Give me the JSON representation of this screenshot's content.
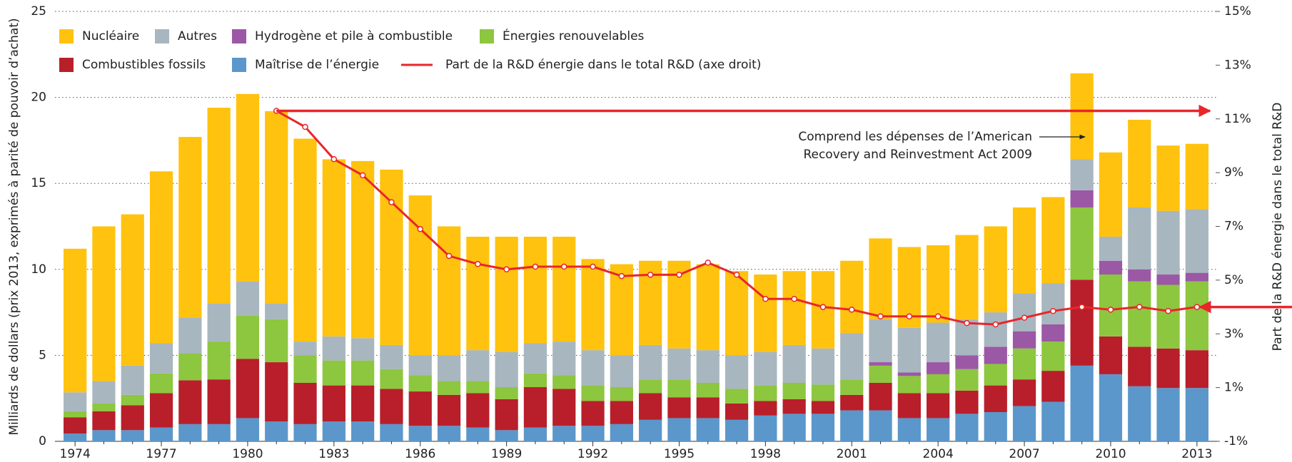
{
  "chart_data": {
    "type": "bar",
    "categories": [
      "1974",
      null,
      null,
      "1977",
      null,
      null,
      "1980",
      null,
      null,
      "1983",
      null,
      null,
      "1986",
      null,
      null,
      "1989",
      null,
      null,
      "1992",
      null,
      null,
      "1995",
      null,
      null,
      "1998",
      null,
      null,
      "2001",
      null,
      null,
      "2004",
      null,
      null,
      "2007",
      null,
      null,
      "2010",
      null,
      null,
      "2013"
    ],
    "y_label": "Milliards de dollars (prix 2013, exprimés à parité de pouvoir d’achat)",
    "y2_label": "Part de la R&D énergie dans le total R&D",
    "annotation": [
      "Comprend les dépenses de l’American",
      "Recovery and Reinvestment Act 2009"
    ],
    "ylim": [
      0,
      25
    ],
    "yticks": [
      0,
      5,
      10,
      15,
      20,
      25
    ],
    "y2lim": [
      -1,
      15
    ],
    "y2ticks": [
      {
        "value": -1,
        "label": "-1%"
      },
      {
        "value": 1,
        "label": "1%"
      },
      {
        "value": 3,
        "label": "3%"
      },
      {
        "value": 5,
        "label": "5%"
      },
      {
        "value": 7,
        "label": "7%"
      },
      {
        "value": 9,
        "label": "9%"
      },
      {
        "value": 11,
        "label": "11%"
      },
      {
        "value": 13,
        "label": "13%"
      },
      {
        "value": 15,
        "label": "15%"
      }
    ],
    "grid": true,
    "stacked": true,
    "series": [
      {
        "name": "Maîtrise de l’énergie",
        "color": "#5b97cb",
        "values": [
          0.45,
          0.65,
          0.65,
          0.8,
          1.0,
          1.0,
          1.35,
          1.15,
          1.0,
          1.15,
          1.15,
          1.0,
          0.9,
          0.9,
          0.8,
          0.65,
          0.8,
          0.9,
          0.9,
          1.0,
          1.25,
          1.35,
          1.35,
          1.25,
          1.5,
          1.6,
          1.6,
          1.8,
          1.8,
          1.35,
          1.35,
          1.6,
          1.7,
          2.05,
          2.3,
          4.4,
          3.9,
          3.2,
          3.1,
          3.1
        ]
      },
      {
        "name": "Combustibles fossils",
        "color": "#b81f2a",
        "values": [
          0.95,
          1.1,
          1.45,
          2.0,
          2.55,
          2.6,
          3.45,
          3.45,
          2.4,
          2.1,
          2.1,
          2.05,
          2.0,
          1.8,
          2.0,
          1.8,
          2.35,
          2.15,
          1.45,
          1.35,
          1.55,
          1.2,
          1.2,
          0.95,
          0.85,
          0.85,
          0.75,
          0.9,
          1.6,
          1.45,
          1.45,
          1.35,
          1.55,
          1.55,
          1.8,
          5.0,
          2.2,
          2.3,
          2.3,
          2.2
        ]
      },
      {
        "name": "Énergies renouvelables",
        "color": "#8dc63f",
        "values": [
          0.35,
          0.45,
          0.6,
          1.15,
          1.55,
          2.2,
          2.5,
          2.5,
          1.6,
          1.45,
          1.45,
          1.15,
          0.95,
          0.8,
          0.7,
          0.7,
          0.8,
          0.8,
          0.9,
          0.8,
          0.8,
          1.05,
          0.85,
          0.85,
          0.9,
          0.95,
          0.95,
          0.9,
          1.0,
          1.0,
          1.1,
          1.25,
          1.25,
          1.8,
          1.7,
          4.2,
          3.6,
          3.8,
          3.7,
          4.0
        ]
      },
      {
        "name": "Hydrogène et pile à combustible",
        "color": "#9b58a5",
        "values": [
          0,
          0,
          0,
          0,
          0,
          0,
          0,
          0,
          0,
          0,
          0,
          0,
          0,
          0,
          0,
          0,
          0,
          0,
          0,
          0,
          0,
          0,
          0,
          0,
          0,
          0,
          0,
          0,
          0.2,
          0.2,
          0.7,
          0.8,
          1.0,
          1.0,
          1.0,
          1.0,
          0.8,
          0.7,
          0.6,
          0.5
        ]
      },
      {
        "name": "Autres",
        "color": "#a8b6bf",
        "values": [
          1.1,
          1.3,
          1.7,
          1.75,
          2.1,
          2.2,
          2.0,
          0.9,
          0.8,
          1.4,
          1.3,
          1.4,
          1.15,
          1.5,
          1.8,
          2.05,
          1.75,
          1.95,
          2.05,
          1.85,
          2.0,
          1.8,
          1.9,
          1.95,
          1.95,
          2.2,
          2.1,
          2.7,
          2.5,
          2.6,
          2.3,
          2.1,
          2.0,
          2.2,
          2.4,
          1.8,
          1.4,
          3.6,
          3.7,
          3.7
        ]
      },
      {
        "name": "Nucléaire",
        "color": "#ffc20e",
        "values": [
          8.35,
          9.0,
          8.8,
          10.0,
          10.5,
          11.4,
          10.9,
          11.2,
          11.8,
          10.3,
          10.3,
          10.2,
          9.3,
          7.5,
          6.6,
          6.7,
          6.2,
          6.1,
          5.3,
          5.3,
          4.9,
          5.1,
          5.0,
          4.9,
          4.5,
          4.3,
          4.5,
          4.2,
          4.7,
          4.7,
          4.5,
          4.9,
          5.0,
          5.0,
          5.0,
          5.0,
          4.9,
          5.1,
          3.8,
          3.8
        ]
      },
      {
        "name": "Part de la R&D énergie dans le total R&D (axe droit)",
        "type": "line",
        "axis": "y2",
        "color": "#e8262b",
        "values": [
          null,
          null,
          null,
          null,
          null,
          null,
          null,
          11.3,
          10.7,
          9.5,
          8.9,
          7.9,
          6.9,
          5.9,
          5.6,
          5.4,
          5.5,
          5.5,
          5.5,
          5.15,
          5.2,
          5.2,
          5.65,
          5.2,
          4.3,
          4.3,
          4.0,
          3.9,
          3.65,
          3.65,
          3.65,
          3.4,
          3.35,
          3.6,
          3.85,
          4.0,
          3.9,
          4.0,
          3.85,
          4.0
        ]
      }
    ]
  }
}
